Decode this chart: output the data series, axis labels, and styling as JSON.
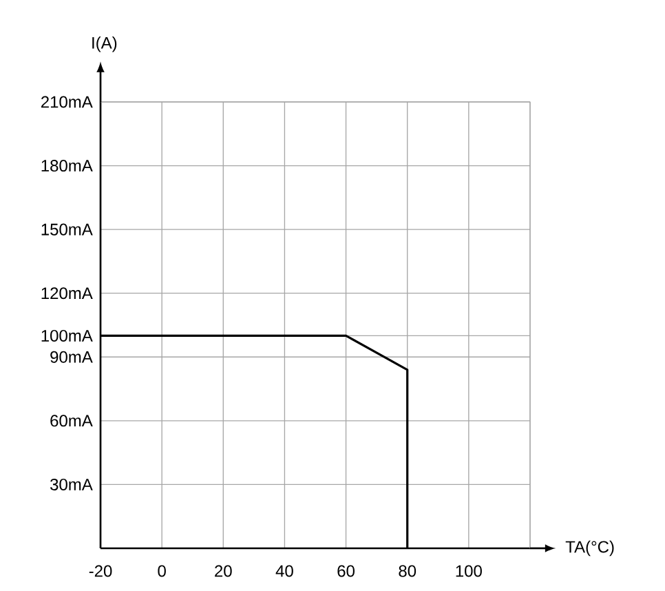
{
  "chart_data": {
    "type": "line",
    "xlabel": "TA(°C)",
    "ylabel": "I(A)",
    "x": [
      -20,
      60,
      80,
      80
    ],
    "series": [
      {
        "color": "#000000",
        "values": [
          100,
          100,
          84,
          0
        ]
      }
    ],
    "xlim": [
      -20,
      120
    ],
    "ylim": [
      0,
      210
    ],
    "xticks": [
      -20,
      0,
      20,
      40,
      60,
      80,
      100,
      {
        "value": 120,
        "label": null
      }
    ],
    "yticks": [
      {
        "value": 30,
        "label": "30mA"
      },
      {
        "value": 60,
        "label": "60mA"
      },
      {
        "value": 90,
        "label": "90mA"
      },
      {
        "value": 100,
        "label": "100mA"
      },
      {
        "value": 120,
        "label": "120mA"
      },
      {
        "value": 150,
        "label": "150mA"
      },
      {
        "value": 180,
        "label": "180mA"
      },
      {
        "value": 210,
        "label": "210mA"
      }
    ],
    "grid": true,
    "marker": "none",
    "line_style": "solid"
  }
}
